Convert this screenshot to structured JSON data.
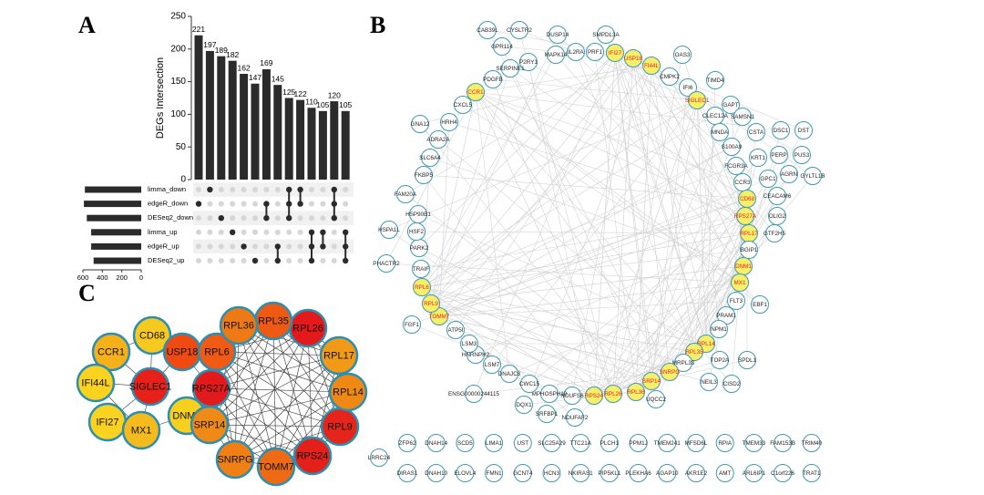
{
  "panel_labels": [
    "A",
    "B",
    "C"
  ],
  "chart_data": [
    {
      "type": "bar",
      "ylabel": "DEGs Intersection",
      "values": [
        221,
        197,
        189,
        182,
        162,
        147,
        169,
        145,
        125,
        122,
        110,
        105,
        120,
        105
      ],
      "intersections": [
        [
          "edgeR_down"
        ],
        [
          "limma_down"
        ],
        [
          "DESeq2_down"
        ],
        [
          "limma_up"
        ],
        [
          "edgeR_up"
        ],
        [
          "DESeq2_up"
        ],
        [
          "edgeR_down",
          "DESeq2_down"
        ],
        [
          "edgeR_up",
          "DESeq2_up"
        ],
        [
          "limma_down",
          "edgeR_down",
          "DESeq2_down"
        ],
        [
          "limma_down",
          "edgeR_down"
        ],
        [
          "limma_up",
          "edgeR_up",
          "DESeq2_up"
        ],
        [
          "limma_up",
          "edgeR_up"
        ],
        [
          "limma_down",
          "edgeR_down",
          "DESeq2_down"
        ],
        [
          "limma_up",
          "edgeR_up",
          "DESeq2_up"
        ]
      ],
      "color": "#2b2b2b",
      "ylim": [
        0,
        250
      ],
      "yticks": [
        0,
        50,
        100,
        150,
        200,
        250
      ]
    },
    {
      "type": "barh",
      "categories": [
        "limma_down",
        "edgeR_down",
        "DESeq2_down",
        "limma_up",
        "edgeR_up",
        "DESeq2_up"
      ],
      "values": [
        580,
        590,
        560,
        515,
        515,
        490
      ],
      "color": "#2b2b2b",
      "xlim": [
        600,
        0
      ],
      "xticks": [
        600,
        400,
        200,
        0
      ]
    }
  ],
  "network_b": {
    "node_color": "#ffffff",
    "highlight_color": "#f7ee6a",
    "highlight_label_color": "#e8251a",
    "nodes": [
      {
        "label": "CAB39L"
      },
      {
        "label": "CYSLTR2"
      },
      {
        "label": "DUSP14"
      },
      {
        "label": "SMPDL3A"
      },
      {
        "label": "GPR114"
      },
      {
        "label": "P2RY1"
      },
      {
        "label": "MAPK14"
      },
      {
        "label": "IL2RA"
      },
      {
        "label": "PRF1"
      },
      {
        "label": "IFI27",
        "highlight": true
      },
      {
        "label": "USP18",
        "highlight": true
      },
      {
        "label": "FI44L",
        "highlight": true
      },
      {
        "label": "OAS3"
      },
      {
        "label": "CMPK2"
      },
      {
        "label": "TIMD4"
      },
      {
        "label": "IFI6"
      },
      {
        "label": "SIGLEC1",
        "highlight": true
      },
      {
        "label": "GAPT"
      },
      {
        "label": "CLEC12A"
      },
      {
        "label": "SAMSN1"
      },
      {
        "label": "CSTA"
      },
      {
        "label": "DSC1"
      },
      {
        "label": "DST"
      },
      {
        "label": "MNDA"
      },
      {
        "label": "S100A9"
      },
      {
        "label": "PERP"
      },
      {
        "label": "PUS3"
      },
      {
        "label": "KRT1"
      },
      {
        "label": "FCGR3A"
      },
      {
        "label": "AGRN"
      },
      {
        "label": "GYLTL1B"
      },
      {
        "label": "GPC1"
      },
      {
        "label": "CCR3"
      },
      {
        "label": "CEACAM6"
      },
      {
        "label": "CD68",
        "highlight": true
      },
      {
        "label": "RPS27A",
        "highlight": true
      },
      {
        "label": "OLIG2"
      },
      {
        "label": "RPL17",
        "highlight": true
      },
      {
        "label": "GTF2H5"
      },
      {
        "label": "BGIP1"
      },
      {
        "label": "DNM1",
        "highlight": true
      },
      {
        "label": "MX1",
        "highlight": true
      },
      {
        "label": "FLT3"
      },
      {
        "label": "EBF1"
      },
      {
        "label": "PRAM1"
      },
      {
        "label": "NPM1"
      },
      {
        "label": "RPL14",
        "highlight": true
      },
      {
        "label": "RPL35",
        "highlight": true
      },
      {
        "label": "TOP2A"
      },
      {
        "label": "SPDL1"
      },
      {
        "label": "MRPL33"
      },
      {
        "label": "SNRPG",
        "highlight": true
      },
      {
        "label": "SRP14",
        "highlight": true
      },
      {
        "label": "NEIL3"
      },
      {
        "label": "CISD2"
      },
      {
        "label": "UQCC2"
      },
      {
        "label": "RPL36",
        "highlight": true
      },
      {
        "label": "RPL26",
        "highlight": true
      },
      {
        "label": "RPS24",
        "highlight": true
      },
      {
        "label": "NDUFS6"
      },
      {
        "label": "MPHOSPH10"
      },
      {
        "label": "NDUFAF2"
      },
      {
        "label": "SRFBP1"
      },
      {
        "label": "DQX1"
      },
      {
        "label": "CWC15"
      },
      {
        "label": "DNAJC8"
      },
      {
        "label": "ENSG00000244115"
      },
      {
        "label": "LSM7"
      },
      {
        "label": "HNRNPH2"
      },
      {
        "label": "LSM3"
      },
      {
        "label": "ATP5I"
      },
      {
        "label": "FGF1"
      },
      {
        "label": "TOMM7",
        "highlight": true
      },
      {
        "label": "RPL9",
        "highlight": true
      },
      {
        "label": "RPL6",
        "highlight": true
      },
      {
        "label": "TRAIF"
      },
      {
        "label": "PHACTR2"
      },
      {
        "label": "PARK2"
      },
      {
        "label": "HSPA1L"
      },
      {
        "label": "HSF2"
      },
      {
        "label": "HSP90B1"
      },
      {
        "label": "FAM20A"
      },
      {
        "label": "FKBP5"
      },
      {
        "label": "SLC6A4"
      },
      {
        "label": "ADRA2A"
      },
      {
        "label": "GNA12"
      },
      {
        "label": "HRH4"
      },
      {
        "label": "CXCL5"
      },
      {
        "label": "CCR1",
        "highlight": true
      },
      {
        "label": "PDGFB"
      },
      {
        "label": "SERPINE1"
      }
    ],
    "isolated_nodes": [
      "LRRC24",
      "ZFP62",
      "DNAH14",
      "SCD5",
      "LIMA1",
      "UST",
      "SLC25A29",
      "TTC21A",
      "PLCH1",
      "PPM1J",
      "TMEM241",
      "MFSD6L",
      "RPIA",
      "TMEM33",
      "FAM153B",
      "TRIM40",
      "DIRAS1",
      "DNAH10",
      "ELOVL4",
      "FMN1",
      "GCNT4",
      "HCN3",
      "NKIRAS1",
      "PIP5KL1",
      "PLEKHA6",
      "AGAP10",
      "AKR1E2",
      "AMT",
      "ARL6IP1",
      "C1orf226",
      "TRAT1"
    ]
  },
  "network_c": {
    "nodes": [
      {
        "label": "CD68",
        "color": "#f6c920"
      },
      {
        "label": "CCR1",
        "color": "#f5b01a"
      },
      {
        "label": "USP18",
        "color": "#ee4a12"
      },
      {
        "label": "IFI44L",
        "color": "#fbd21f"
      },
      {
        "label": "SIGLEC1",
        "color": "#e8201a"
      },
      {
        "label": "IFI27",
        "color": "#fbd21f"
      },
      {
        "label": "MX1",
        "color": "#f5bb1c"
      },
      {
        "label": "DNM1",
        "color": "#f7cf1e"
      },
      {
        "label": "RPL6",
        "color": "#ef5a14"
      },
      {
        "label": "RPS27A",
        "color": "#e31a1c"
      },
      {
        "label": "SRP14",
        "color": "#f08a17"
      },
      {
        "label": "SNRPG",
        "color": "#f07f16"
      },
      {
        "label": "TOMM7",
        "color": "#ef6a14"
      },
      {
        "label": "RPS24",
        "color": "#e4201a"
      },
      {
        "label": "RPL9",
        "color": "#e5251a"
      },
      {
        "label": "RPL14",
        "color": "#f08816"
      },
      {
        "label": "RPL17",
        "color": "#f19a17"
      },
      {
        "label": "RPL26",
        "color": "#e3191b"
      },
      {
        "label": "RPL35",
        "color": "#ee5a14"
      },
      {
        "label": "RPL36",
        "color": "#ef7a15"
      }
    ]
  }
}
